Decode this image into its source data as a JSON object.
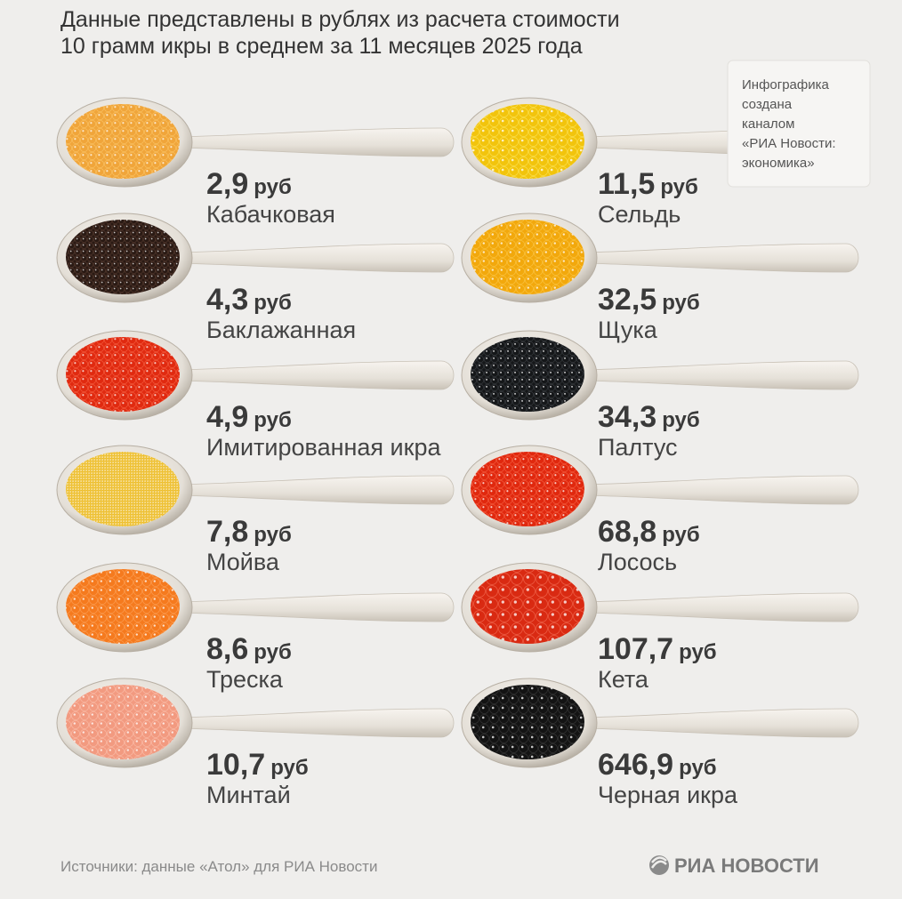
{
  "header": {
    "title_line1": "Данные представлены в рублях из расчета стоимости",
    "title_line2": "10 грамм икры в среднем за 11 месяцев 2025 года"
  },
  "note": {
    "lines": [
      "Инфографика",
      "создана",
      "каналом",
      "«РИА Новости:",
      "экономика»"
    ]
  },
  "items": [
    {
      "price": "2,9",
      "unit": "руб",
      "name": "Кабачковая"
    },
    {
      "price": "4,3",
      "unit": "руб",
      "name": "Баклажанная"
    },
    {
      "price": "4,9",
      "unit": "руб",
      "name": "Имитированная икра"
    },
    {
      "price": "7,8",
      "unit": "руб",
      "name": "Мойва"
    },
    {
      "price": "8,6",
      "unit": "руб",
      "name": "Треска"
    },
    {
      "price": "10,7",
      "unit": "руб",
      "name": "Минтай"
    },
    {
      "price": "11,5",
      "unit": "руб",
      "name": "Сельдь"
    },
    {
      "price": "32,5",
      "unit": "руб",
      "name": "Щука"
    },
    {
      "price": "34,3",
      "unit": "руб",
      "name": "Палтус"
    },
    {
      "price": "68,8",
      "unit": "руб",
      "name": "Лосось"
    },
    {
      "price": "107,7",
      "unit": "руб",
      "name": "Кета"
    },
    {
      "price": "646,9",
      "unit": "руб",
      "name": "Черная икра"
    }
  ],
  "footer": {
    "source": "Источники: данные «Атол» для РИА Новости",
    "logo": "РИА НОВОСТИ"
  }
}
